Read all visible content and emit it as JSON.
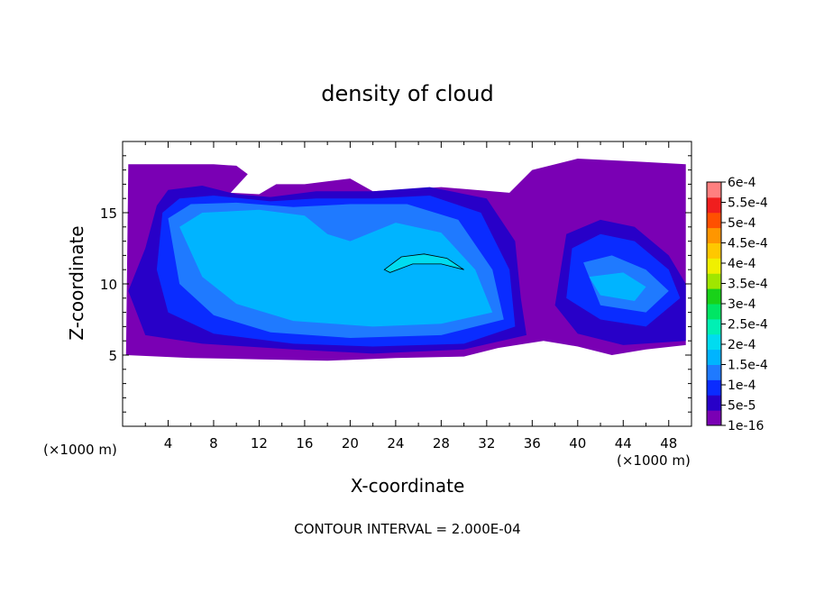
{
  "chart_data": {
    "type": "heatmap",
    "title": "density of cloud",
    "xlabel": "X-coordinate",
    "ylabel": "Z-coordinate",
    "x_unit_note": "(×1000 m)",
    "y_unit_note": "(×1000 m)",
    "xlim": [
      0,
      50
    ],
    "ylim": [
      0,
      20
    ],
    "x_ticks": [
      4,
      8,
      12,
      16,
      20,
      24,
      28,
      32,
      36,
      40,
      44,
      48
    ],
    "y_ticks": [
      5,
      10,
      15
    ],
    "footer": "CONTOUR INTERVAL = 2.000E-04",
    "colorbar": {
      "levels": [
        "1e-16",
        "5e-5",
        "1e-4",
        "1.5e-4",
        "2e-4",
        "2.5e-4",
        "3e-4",
        "3.5e-4",
        "4e-4",
        "4.5e-4",
        "5e-4",
        "5.5e-4",
        "6e-4"
      ],
      "colors": [
        "#7a00b4",
        "#2800c8",
        "#0a2cff",
        "#1f7aff",
        "#00b4ff",
        "#00dcf0",
        "#00f0b4",
        "#00e664",
        "#19d219",
        "#a0e600",
        "#f0f000",
        "#ffc800",
        "#ff9600",
        "#ff5000",
        "#f01e1e",
        "#ff8080"
      ]
    },
    "regions": [
      {
        "level": 0,
        "points": [
          [
            0.5,
            18.4
          ],
          [
            8,
            18.4
          ],
          [
            10,
            18.3
          ],
          [
            11,
            17.7
          ],
          [
            9.5,
            16.4
          ],
          [
            12,
            16.3
          ],
          [
            13.5,
            17.0
          ],
          [
            16,
            17.0
          ],
          [
            20,
            17.4
          ],
          [
            22,
            16.5
          ],
          [
            28,
            16.8
          ],
          [
            34,
            16.4
          ],
          [
            36,
            18.0
          ],
          [
            40,
            18.8
          ],
          [
            45,
            18.6
          ],
          [
            49.5,
            18.4
          ],
          [
            49.5,
            5.7
          ],
          [
            46,
            5.4
          ],
          [
            43,
            5.0
          ],
          [
            40,
            5.6
          ],
          [
            37,
            6.0
          ],
          [
            33,
            5.5
          ],
          [
            30,
            4.9
          ],
          [
            24,
            4.8
          ],
          [
            18,
            4.6
          ],
          [
            12,
            4.7
          ],
          [
            6,
            4.8
          ],
          [
            0.3,
            5.0
          ]
        ]
      },
      {
        "level": 1,
        "points": [
          [
            3,
            15.5
          ],
          [
            4,
            16.6
          ],
          [
            7,
            16.9
          ],
          [
            10,
            16.3
          ],
          [
            13,
            16.1
          ],
          [
            17,
            16.5
          ],
          [
            22,
            16.5
          ],
          [
            27,
            16.8
          ],
          [
            32,
            16.0
          ],
          [
            34.5,
            13.0
          ],
          [
            35,
            9.0
          ],
          [
            35.5,
            6.4
          ],
          [
            30,
            5.4
          ],
          [
            22,
            5.1
          ],
          [
            15,
            5.4
          ],
          [
            7,
            5.8
          ],
          [
            2,
            6.4
          ],
          [
            0.5,
            9.5
          ],
          [
            2,
            12.5
          ]
        ]
      },
      {
        "level": 1,
        "points": [
          [
            39,
            13.5
          ],
          [
            42,
            14.5
          ],
          [
            45,
            14.0
          ],
          [
            48,
            12.0
          ],
          [
            49.5,
            10.0
          ],
          [
            49.5,
            6.0
          ],
          [
            44,
            5.7
          ],
          [
            40,
            6.5
          ],
          [
            38,
            8.5
          ]
        ]
      },
      {
        "level": 2,
        "points": [
          [
            3.5,
            15.0
          ],
          [
            5,
            16.0
          ],
          [
            8,
            16.2
          ],
          [
            13,
            15.8
          ],
          [
            17,
            16.0
          ],
          [
            22,
            16.0
          ],
          [
            27,
            16.2
          ],
          [
            31.5,
            15.0
          ],
          [
            34,
            11.0
          ],
          [
            34.5,
            7.0
          ],
          [
            30,
            5.8
          ],
          [
            22,
            5.6
          ],
          [
            15,
            5.8
          ],
          [
            8,
            6.5
          ],
          [
            4,
            8.0
          ],
          [
            3,
            11.0
          ]
        ]
      },
      {
        "level": 2,
        "points": [
          [
            39.5,
            12.5
          ],
          [
            42,
            13.5
          ],
          [
            45,
            13.0
          ],
          [
            48,
            11.0
          ],
          [
            49,
            9.0
          ],
          [
            46,
            7.0
          ],
          [
            42,
            7.5
          ],
          [
            39,
            9.0
          ]
        ]
      },
      {
        "level": 3,
        "points": [
          [
            4,
            14.6
          ],
          [
            6,
            15.6
          ],
          [
            10,
            15.7
          ],
          [
            15,
            15.4
          ],
          [
            20,
            15.6
          ],
          [
            25,
            15.6
          ],
          [
            29.5,
            14.5
          ],
          [
            32.5,
            11.0
          ],
          [
            33.5,
            7.5
          ],
          [
            28,
            6.4
          ],
          [
            20,
            6.2
          ],
          [
            13,
            6.6
          ],
          [
            8,
            7.8
          ],
          [
            5,
            10.0
          ]
        ]
      },
      {
        "level": 3,
        "points": [
          [
            40.5,
            11.5
          ],
          [
            43,
            12.0
          ],
          [
            46,
            11.0
          ],
          [
            48,
            9.5
          ],
          [
            46,
            8.0
          ],
          [
            42,
            8.5
          ]
        ]
      },
      {
        "level": 4,
        "points": [
          [
            5,
            14.0
          ],
          [
            7,
            15.0
          ],
          [
            12,
            15.2
          ],
          [
            16,
            14.8
          ],
          [
            18,
            13.5
          ],
          [
            20,
            13.0
          ],
          [
            24,
            14.3
          ],
          [
            28,
            13.6
          ],
          [
            31,
            11.0
          ],
          [
            32.5,
            8.0
          ],
          [
            28,
            7.2
          ],
          [
            22,
            7.0
          ],
          [
            15,
            7.4
          ],
          [
            10,
            8.6
          ],
          [
            7,
            10.5
          ]
        ]
      },
      {
        "level": 4,
        "points": [
          [
            41,
            10.5
          ],
          [
            44,
            10.8
          ],
          [
            46,
            9.8
          ],
          [
            45,
            8.8
          ],
          [
            42,
            9.2
          ]
        ]
      },
      {
        "level": 5,
        "points": [
          [
            23,
            11.0
          ],
          [
            24.5,
            11.9
          ],
          [
            26.5,
            12.1
          ],
          [
            28.5,
            11.8
          ],
          [
            30,
            11.0
          ],
          [
            28,
            11.4
          ],
          [
            25.5,
            11.4
          ],
          [
            23.5,
            10.8
          ]
        ]
      }
    ]
  }
}
